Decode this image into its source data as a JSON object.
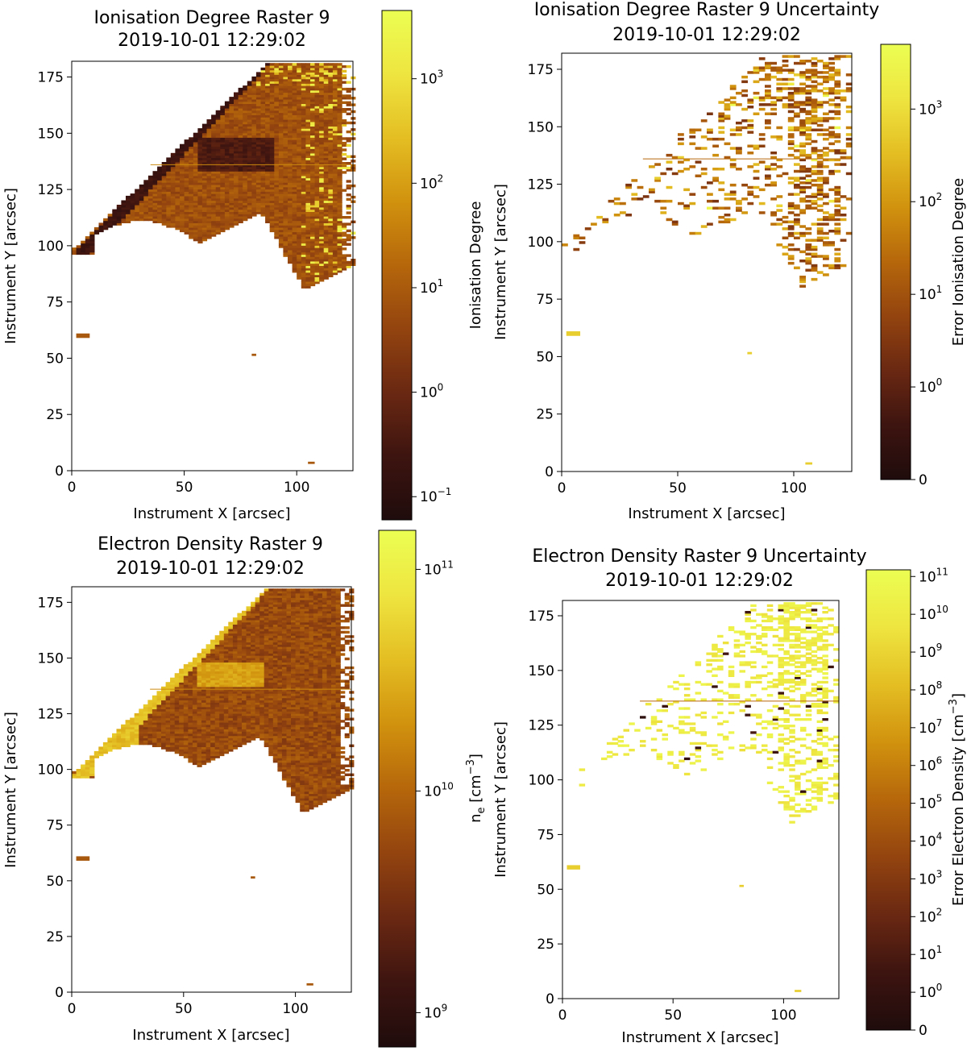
{
  "colors": {
    "cmap_stops": [
      "#1f0c0c",
      "#3d1410",
      "#6a2812",
      "#93440f",
      "#b6670b",
      "#d1920e",
      "#e4be23",
      "#eee540",
      "#ecfe52"
    ],
    "axis": "#000000",
    "background": "#ffffff"
  },
  "chart_data": [
    {
      "type": "heatmap",
      "title": "Ionisation Degree Raster 9",
      "subtitle": "2019-10-01 12:29:02",
      "xlabel": "Instrument X [arcsec]",
      "ylabel": "Instrument Y [arcsec]",
      "colorbar_label": "Ionisation Degree",
      "xlim": [
        0,
        125
      ],
      "ylim": [
        0,
        182
      ],
      "xticks": [
        0,
        50,
        100
      ],
      "yticks": [
        0,
        25,
        50,
        75,
        100,
        125,
        150,
        175
      ],
      "colorbar_scale": "log",
      "colorbar_range": [
        0.06,
        4500
      ],
      "colorbar_ticks": [
        {
          "base": "10",
          "exp": "−1"
        },
        {
          "base": "10",
          "exp": "0"
        },
        {
          "base": "10",
          "exp": "1"
        },
        {
          "base": "10",
          "exp": "2"
        },
        {
          "base": "10",
          "exp": "3"
        }
      ],
      "field": "ionisation",
      "sparse": false,
      "grid": false
    },
    {
      "type": "heatmap",
      "title": "Ionisation Degree Raster 9 Uncertainty",
      "subtitle": "2019-10-01 12:29:02",
      "xlabel": "Instrument X [arcsec]",
      "ylabel": "Instrument Y [arcsec]",
      "colorbar_label": "Error Ionisation Degree",
      "xlim": [
        0,
        125
      ],
      "ylim": [
        0,
        182
      ],
      "xticks": [
        0,
        50,
        100
      ],
      "yticks": [
        0,
        25,
        50,
        75,
        100,
        125,
        150,
        175
      ],
      "colorbar_scale": "symlog",
      "colorbar_range": [
        0,
        5000
      ],
      "colorbar_ticks": [
        {
          "base": "0",
          "exp": ""
        },
        {
          "base": "10",
          "exp": "0"
        },
        {
          "base": "10",
          "exp": "1"
        },
        {
          "base": "10",
          "exp": "2"
        },
        {
          "base": "10",
          "exp": "3"
        }
      ],
      "field": "ionisation_error",
      "sparse": true,
      "grid": false
    },
    {
      "type": "heatmap",
      "title": "Electron Density Raster 9",
      "subtitle": "2019-10-01 12:29:02",
      "xlabel": "Instrument X [arcsec]",
      "ylabel": "Instrument Y [arcsec]",
      "colorbar_label": "n_e [cm^-3]",
      "xlim": [
        0,
        125
      ],
      "ylim": [
        0,
        182
      ],
      "xticks": [
        0,
        50,
        100
      ],
      "yticks": [
        0,
        25,
        50,
        75,
        100,
        125,
        150,
        175
      ],
      "colorbar_scale": "log",
      "colorbar_range": [
        700000000.0,
        150000000000.0
      ],
      "colorbar_ticks": [
        {
          "base": "10",
          "exp": "9"
        },
        {
          "base": "10",
          "exp": "10"
        },
        {
          "base": "10",
          "exp": "11"
        }
      ],
      "field": "density",
      "sparse": false,
      "grid": false
    },
    {
      "type": "heatmap",
      "title": "Electron Density Raster 9 Uncertainty",
      "subtitle": "2019-10-01 12:29:02",
      "xlabel": "Instrument X [arcsec]",
      "ylabel": "Instrument Y [arcsec]",
      "colorbar_label": "Error Electron Density [cm^-3]",
      "xlim": [
        0,
        125
      ],
      "ylim": [
        0,
        182
      ],
      "xticks": [
        0,
        50,
        100
      ],
      "yticks": [
        0,
        25,
        50,
        75,
        100,
        125,
        150,
        175
      ],
      "colorbar_scale": "symlog",
      "colorbar_range": [
        0,
        150000000000.0
      ],
      "colorbar_ticks": [
        {
          "base": "0",
          "exp": ""
        },
        {
          "base": "10",
          "exp": "0"
        },
        {
          "base": "10",
          "exp": "1"
        },
        {
          "base": "10",
          "exp": "2"
        },
        {
          "base": "10",
          "exp": "3"
        },
        {
          "base": "10",
          "exp": "4"
        },
        {
          "base": "10",
          "exp": "5"
        },
        {
          "base": "10",
          "exp": "6"
        },
        {
          "base": "10",
          "exp": "7"
        },
        {
          "base": "10",
          "exp": "8"
        },
        {
          "base": "10",
          "exp": "9"
        },
        {
          "base": "10",
          "exp": "10"
        },
        {
          "base": "10",
          "exp": "11"
        }
      ],
      "field": "density_error",
      "sparse": true,
      "grid": false
    }
  ]
}
